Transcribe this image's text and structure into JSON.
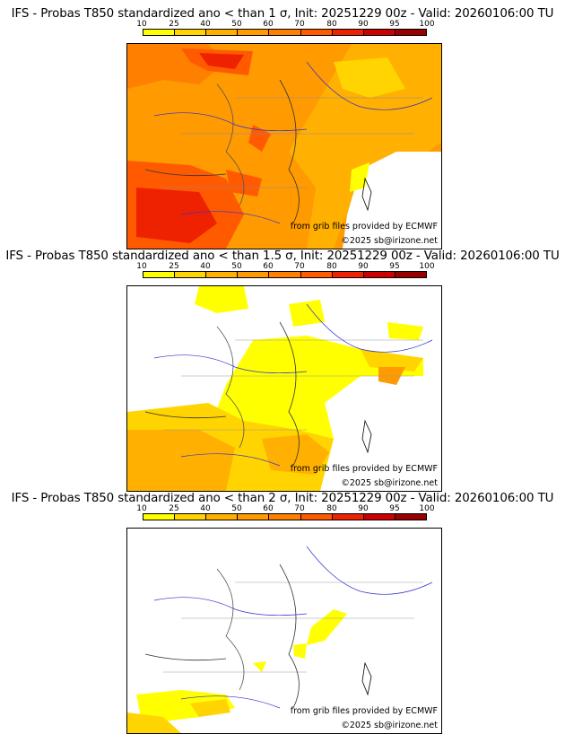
{
  "colorbar": {
    "labels": [
      "10",
      "25",
      "40",
      "50",
      "60",
      "70",
      "80",
      "90",
      "95",
      "100"
    ],
    "colors": [
      "#ffff00",
      "#ffd400",
      "#ffb000",
      "#ff9a00",
      "#ff7f00",
      "#ff5a00",
      "#ee2200",
      "#cc0000",
      "#990000",
      "#660000"
    ]
  },
  "credits": {
    "source": "from grib files provided by ECMWF",
    "copyright": "©2025 sb@irizone.net"
  },
  "panels": [
    {
      "title": "IFS - Probas T850  standardized ano < than 1 σ, Init: 20251229 00z - Valid: 20260106:00 TU",
      "sigma": "1"
    },
    {
      "title": "IFS - Probas T850  standardized ano < than 1.5 σ, Init: 20251229 00z - Valid: 20260106:00 TU",
      "sigma": "1.5"
    },
    {
      "title": "IFS - Probas T850  standardized ano < than 2 σ, Init: 20251229 00z - Valid: 20260106:00 TU",
      "sigma": "2"
    }
  ]
}
